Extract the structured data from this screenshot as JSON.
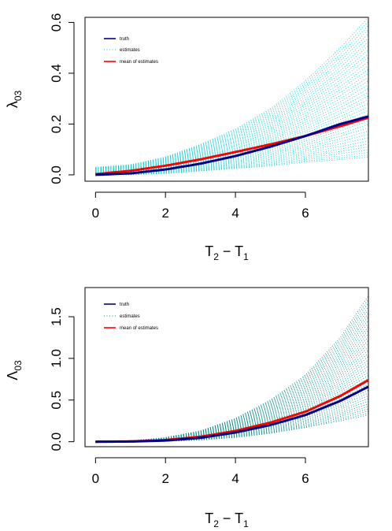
{
  "chart_data": [
    {
      "type": "line",
      "xlabel": "T2 − T1",
      "ylabel": "λ03",
      "xlim": [
        -0.3,
        7.8
      ],
      "ylim": [
        -0.025,
        0.62
      ],
      "xticks": [
        0,
        2,
        4,
        6
      ],
      "yticks": [
        0.0,
        0.2,
        0.4,
        0.6
      ],
      "x_tick_labels": [
        "0",
        "2",
        "4",
        "6"
      ],
      "y_tick_labels": [
        "0.0",
        "0.2",
        "0.4",
        "0.6"
      ],
      "grid": false,
      "legend_position": "top-left",
      "legend": [
        "truth",
        "estimates",
        "mean of estimates"
      ],
      "series": [
        {
          "name": "truth",
          "style": "solid",
          "color": "#00008b",
          "x": [
            0,
            1,
            2,
            3,
            4,
            5,
            6,
            7,
            7.8
          ],
          "values": [
            0.0,
            0.006,
            0.021,
            0.044,
            0.074,
            0.111,
            0.153,
            0.2,
            0.23
          ]
        },
        {
          "name": "estimates",
          "style": "dotted",
          "color": "#00ced1",
          "note_range_at_x": [
            0,
            1,
            2,
            3,
            4,
            5,
            6,
            7,
            7.8
          ],
          "lower": [
            0.0,
            0.0,
            0.005,
            0.015,
            0.025,
            0.035,
            0.05,
            0.06,
            0.07
          ],
          "upper": [
            0.03,
            0.04,
            0.07,
            0.12,
            0.18,
            0.26,
            0.37,
            0.5,
            0.62
          ]
        },
        {
          "name": "mean of estimates",
          "style": "solid",
          "color": "#ff0000",
          "x": [
            0,
            1,
            2,
            3,
            4,
            5,
            6,
            7,
            7.8
          ],
          "values": [
            0.003,
            0.016,
            0.036,
            0.061,
            0.09,
            0.12,
            0.153,
            0.192,
            0.225
          ]
        }
      ]
    },
    {
      "type": "line",
      "xlabel": "T2 − T1",
      "ylabel": "Λ03",
      "xlim": [
        -0.3,
        7.8
      ],
      "ylim": [
        -0.06,
        1.85
      ],
      "xticks": [
        0,
        2,
        4,
        6
      ],
      "yticks": [
        0.0,
        0.5,
        1.0,
        1.5
      ],
      "x_tick_labels": [
        "0",
        "2",
        "4",
        "6"
      ],
      "y_tick_labels": [
        "0.0",
        "0.5",
        "1.0",
        "1.5"
      ],
      "grid": false,
      "legend_position": "top-left",
      "legend": [
        "truth",
        "estimates",
        "mean of estimates"
      ],
      "series": [
        {
          "name": "truth",
          "style": "solid",
          "color": "#00008b",
          "x": [
            0,
            1,
            2,
            3,
            4,
            5,
            6,
            7,
            7.8
          ],
          "values": [
            0.0,
            0.002,
            0.014,
            0.046,
            0.11,
            0.2,
            0.32,
            0.49,
            0.66
          ]
        },
        {
          "name": "estimates",
          "style": "dotted",
          "color": "#008b8b",
          "note_range_at_x": [
            0,
            1,
            2,
            3,
            4,
            5,
            6,
            7,
            7.8
          ],
          "lower": [
            0.0,
            0.0,
            0.005,
            0.02,
            0.05,
            0.1,
            0.17,
            0.25,
            0.32
          ],
          "upper": [
            0.0,
            0.01,
            0.05,
            0.13,
            0.28,
            0.5,
            0.8,
            1.25,
            1.75
          ]
        },
        {
          "name": "mean of estimates",
          "style": "solid",
          "color": "#ff0000",
          "x": [
            0,
            1,
            2,
            3,
            4,
            5,
            6,
            7,
            7.8
          ],
          "values": [
            0.0,
            0.003,
            0.02,
            0.06,
            0.13,
            0.23,
            0.36,
            0.55,
            0.74
          ]
        }
      ]
    }
  ]
}
